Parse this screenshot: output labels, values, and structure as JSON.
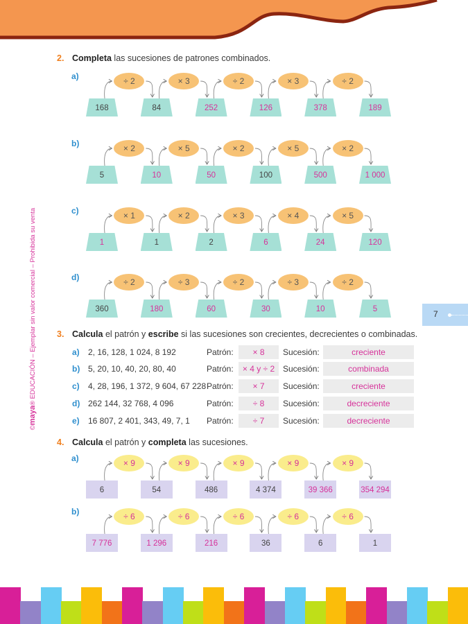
{
  "side_note": {
    "copyright": "©",
    "brand": "maya",
    "rest": "® EDUCACIÓN – Ejemplar sin valor comercial – Prohibida su venta"
  },
  "page_number": "7",
  "colors": {
    "header_orange": "#f4964f",
    "header_border": "#8b2510",
    "teal_box": "#a6e0d6",
    "orange_oval": "#f7c275",
    "lavender_box": "#d9d4ef",
    "yellow_oval": "#faec8c",
    "answer_pink": "#d6329a",
    "label_blue": "#2f8fce",
    "footer": [
      "#d81f98",
      "#9283c8",
      "#66cdf3",
      "#bfdf18",
      "#fbbd0a",
      "#f27319"
    ]
  },
  "section2": {
    "number": "2.",
    "bold": "Completa",
    "rest": " las sucesiones de patrones combinados.",
    "rows": [
      {
        "label": "a)",
        "ops": [
          "÷ 2",
          "× 3",
          "÷ 2",
          "× 3",
          "÷ 2"
        ],
        "values": [
          "168",
          "84",
          "252",
          "126",
          "378",
          "189"
        ],
        "answers": [
          false,
          false,
          true,
          true,
          true,
          true
        ]
      },
      {
        "label": "b)",
        "ops": [
          "× 2",
          "× 5",
          "× 2",
          "× 5",
          "× 2"
        ],
        "values": [
          "5",
          "10",
          "50",
          "100",
          "500",
          "1 000"
        ],
        "answers": [
          false,
          true,
          true,
          false,
          true,
          true
        ]
      },
      {
        "label": "c)",
        "ops": [
          "× 1",
          "× 2",
          "× 3",
          "× 4",
          "× 5"
        ],
        "values": [
          "1",
          "1",
          "2",
          "6",
          "24",
          "120"
        ],
        "answers": [
          true,
          false,
          false,
          true,
          true,
          true
        ]
      },
      {
        "label": "d)",
        "ops": [
          "÷ 2",
          "÷ 3",
          "÷ 2",
          "÷ 3",
          "÷ 2"
        ],
        "values": [
          "360",
          "180",
          "60",
          "30",
          "10",
          "5"
        ],
        "answers": [
          false,
          true,
          true,
          true,
          true,
          true
        ]
      }
    ]
  },
  "section3": {
    "number": "3.",
    "bold1": "Calcula",
    "mid": " el patrón y ",
    "bold2": "escribe",
    "rest": " si las sucesiones son crecientes, decrecientes o combinadas.",
    "pattern_label": "Patrón:",
    "sequence_label": "Sucesión:",
    "rows": [
      {
        "label": "a)",
        "sequence": "2, 16, 128, 1 024, 8 192",
        "pattern": "× 8",
        "type": "creciente"
      },
      {
        "label": "b)",
        "sequence": "5, 20, 10, 40, 20, 80, 40",
        "pattern": "× 4 y ÷ 2",
        "type": "combinada"
      },
      {
        "label": "c)",
        "sequence": "4, 28, 196, 1 372, 9 604, 67 228",
        "pattern": "× 7",
        "type": "creciente"
      },
      {
        "label": "d)",
        "sequence": "262 144, 32 768, 4 096",
        "pattern": "÷ 8",
        "type": "decreciente"
      },
      {
        "label": "e)",
        "sequence": "16 807, 2 401, 343, 49, 7, 1",
        "pattern": "÷ 7",
        "type": "decreciente"
      }
    ]
  },
  "section4": {
    "number": "4.",
    "bold1": "Calcula",
    "mid": " el patrón y ",
    "bold2": "completa",
    "rest": " las sucesiones.",
    "rows": [
      {
        "label": "a)",
        "ops": [
          "× 9",
          "× 9",
          "× 9",
          "× 9",
          "× 9"
        ],
        "values": [
          "6",
          "54",
          "486",
          "4 374",
          "39 366",
          "354 294"
        ],
        "answers": [
          false,
          false,
          false,
          false,
          true,
          true
        ]
      },
      {
        "label": "b)",
        "ops": [
          "÷ 6",
          "÷ 6",
          "÷ 6",
          "÷ 6",
          "÷ 6"
        ],
        "values": [
          "7 776",
          "1 296",
          "216",
          "36",
          "6",
          "1"
        ],
        "answers": [
          true,
          true,
          true,
          false,
          false,
          false
        ]
      }
    ]
  }
}
